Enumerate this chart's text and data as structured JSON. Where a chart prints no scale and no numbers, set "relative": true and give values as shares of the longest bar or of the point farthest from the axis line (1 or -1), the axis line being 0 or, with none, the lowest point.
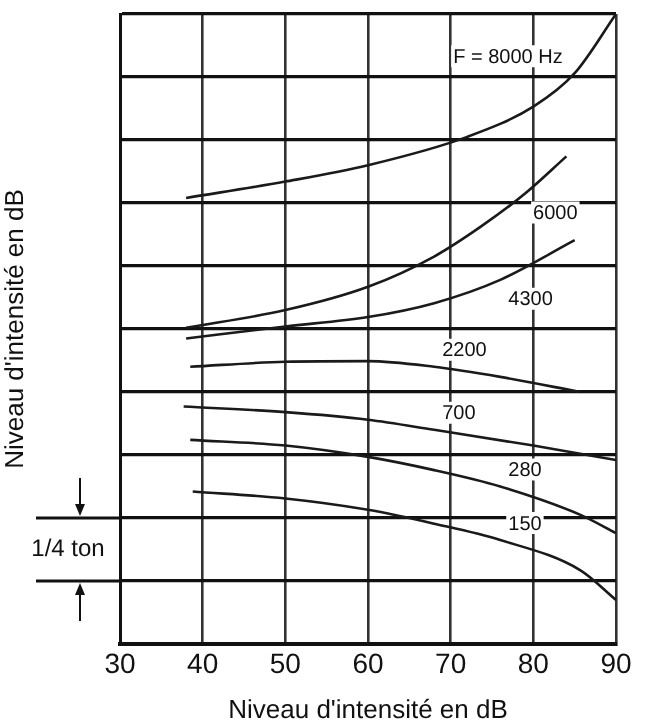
{
  "chart_data": {
    "type": "line",
    "relative": true,
    "xlabel": "Niveau d'intensité en dB",
    "ylabel": "Niveau d'intensité en dB",
    "xlim": [
      30,
      90
    ],
    "xticks": [
      30,
      40,
      50,
      60,
      70,
      80,
      90
    ],
    "grid": true,
    "marker": "none",
    "line_style": "solid",
    "tick_labels": "x",
    "legend": false,
    "annotations": [
      "1/4 ton"
    ],
    "series": [
      {
        "name": "F = 8000 Hz",
        "color": "#1a1a1a",
        "x": [
          38,
          50,
          60,
          72,
          80,
          85,
          90
        ],
        "values": [
          0.708,
          0.734,
          0.76,
          0.805,
          0.853,
          0.906,
          1
        ]
      },
      {
        "name": "6000",
        "color": "#1a1a1a",
        "x": [
          38,
          50,
          60,
          68,
          73.6,
          79,
          84
        ],
        "values": [
          0.502,
          0.53,
          0.567,
          0.615,
          0.662,
          0.715,
          0.774
        ]
      },
      {
        "name": "4300",
        "color": "#1a1a1a",
        "x": [
          38,
          50,
          60,
          68,
          76,
          85
        ],
        "values": [
          0.485,
          0.504,
          0.519,
          0.541,
          0.578,
          0.641
        ]
      },
      {
        "name": "2200",
        "color": "#1a1a1a",
        "x": [
          38.5,
          50,
          60,
          68,
          76,
          85.7
        ],
        "values": [
          0.44,
          0.448,
          0.449,
          0.44,
          0.424,
          0.4
        ]
      },
      {
        "name": "700",
        "color": "#1a1a1a",
        "x": [
          37.7,
          50,
          60,
          68,
          80,
          90
        ],
        "values": [
          0.377,
          0.368,
          0.356,
          0.34,
          0.315,
          0.292
        ]
      },
      {
        "name": "280",
        "color": "#1a1a1a",
        "x": [
          38.5,
          50,
          60,
          68,
          76,
          85.7,
          90
        ],
        "values": [
          0.324,
          0.315,
          0.297,
          0.276,
          0.25,
          0.205,
          0.176
        ]
      },
      {
        "name": "150",
        "color": "#1a1a1a",
        "x": [
          38.8,
          50,
          60,
          68,
          76,
          85.7,
          90
        ],
        "values": [
          0.242,
          0.231,
          0.213,
          0.191,
          0.165,
          0.117,
          0.07
        ]
      }
    ]
  }
}
